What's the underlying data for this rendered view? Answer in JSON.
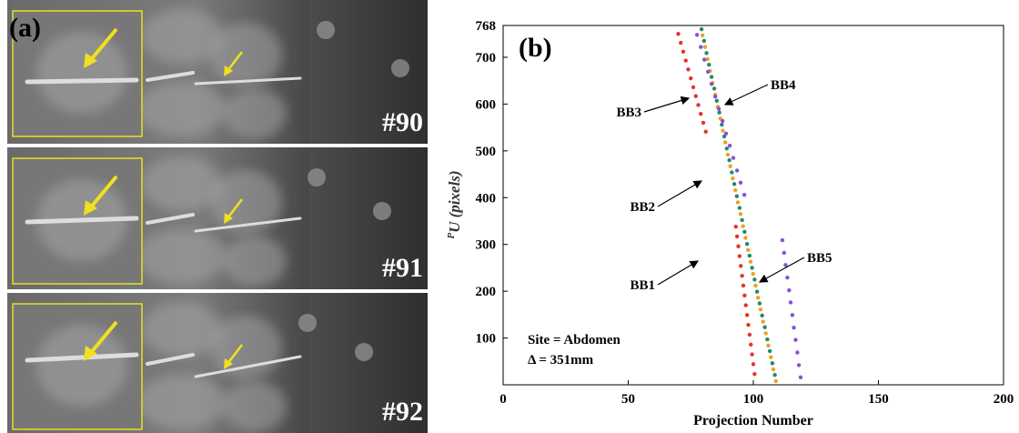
{
  "panel_a": {
    "label": "(a)",
    "frames": [
      "#90",
      "#91",
      "#92"
    ]
  },
  "chart_data": {
    "type": "scatter",
    "panel_label": "(b)",
    "x_label": "Projection Number",
    "y_label_prefix": "P",
    "y_label": "U (pixels)",
    "xlim": [
      0,
      200
    ],
    "xticks": [
      0,
      50,
      100,
      150,
      200
    ],
    "ylim": [
      0,
      768
    ],
    "yticks": [
      100,
      200,
      300,
      400,
      500,
      600,
      700,
      768
    ],
    "series": [
      {
        "color": "#e8322a",
        "x": [
          70,
          71,
          72,
          73,
          74,
          75,
          76,
          77,
          78,
          79,
          80,
          81
        ],
        "y": [
          750,
          731,
          712,
          693,
          674,
          655,
          636,
          617,
          598,
          579,
          560,
          541
        ]
      },
      {
        "color": "#e8322a",
        "x": [
          93,
          93.5,
          94,
          94.5,
          95,
          95.5,
          96,
          96.5,
          97,
          97.5,
          98,
          98.5,
          99,
          99.5,
          100,
          100.5
        ],
        "y": [
          338,
          317,
          296,
          275,
          254,
          233,
          212,
          191,
          170,
          149,
          128,
          107,
          86,
          65,
          44,
          23
        ]
      },
      {
        "color": "#f0a020",
        "x": [
          79.7,
          80.7,
          81.7,
          82.7,
          83.7,
          84.8,
          85.8,
          86.8,
          87.8,
          88.8,
          89.8,
          90.8,
          91.8,
          92.8,
          93.8,
          94.9,
          95.9,
          96.9,
          97.9,
          98.9,
          99.9,
          100.9,
          101.9,
          102.9,
          103.9,
          105,
          106,
          107,
          108,
          109
        ],
        "y": [
          747,
          722,
          696,
          671,
          645,
          620,
          594,
          569,
          543,
          518,
          492,
          467,
          441,
          416,
          390,
          365,
          339,
          314,
          288,
          263,
          237,
          212,
          186,
          161,
          135,
          110,
          84,
          59,
          33,
          8
        ]
      },
      {
        "color": "#1f8a70",
        "x": [
          79.3,
          80.3,
          81.3,
          82.3,
          83.3,
          84.4,
          85.4,
          86.4,
          87.4,
          88.4,
          89.4,
          90.4,
          91.4,
          92.4,
          93.4,
          94.5,
          95.5,
          96.5,
          97.5,
          98.5,
          99.5,
          100.5,
          101.5,
          102.5,
          103.5,
          104.6,
          105.6,
          106.6,
          107.6,
          108.6
        ],
        "y": [
          760,
          735,
          709,
          684,
          658,
          633,
          607,
          582,
          556,
          531,
          505,
          480,
          454,
          429,
          403,
          378,
          352,
          327,
          301,
          276,
          250,
          225,
          199,
          174,
          148,
          123,
          97,
          72,
          46,
          21
        ]
      },
      {
        "color": "#8a4fd8",
        "x": [
          77.5,
          79,
          80.4,
          81.9,
          83.3,
          84.8,
          86.2,
          87.7,
          89.1,
          90.6,
          92,
          93.5,
          94.9,
          96.4
        ],
        "y": [
          748,
          722,
          695,
          669,
          643,
          616,
          590,
          564,
          537,
          511,
          485,
          458,
          432,
          406
        ]
      },
      {
        "color": "#8a4fd8",
        "x": [
          111.6,
          112.3,
          112.9,
          113.6,
          114.3,
          114.9,
          115.6,
          116.2,
          116.9,
          117.6,
          118.2,
          118.9
        ],
        "y": [
          309,
          282,
          256,
          229,
          202,
          176,
          149,
          122,
          96,
          69,
          42,
          16
        ]
      }
    ],
    "annotations": [
      "BB1",
      "BB2",
      "BB3",
      "BB4",
      "BB5"
    ],
    "notes": [
      "Site = Abdomen",
      "Δ = 351mm"
    ]
  }
}
